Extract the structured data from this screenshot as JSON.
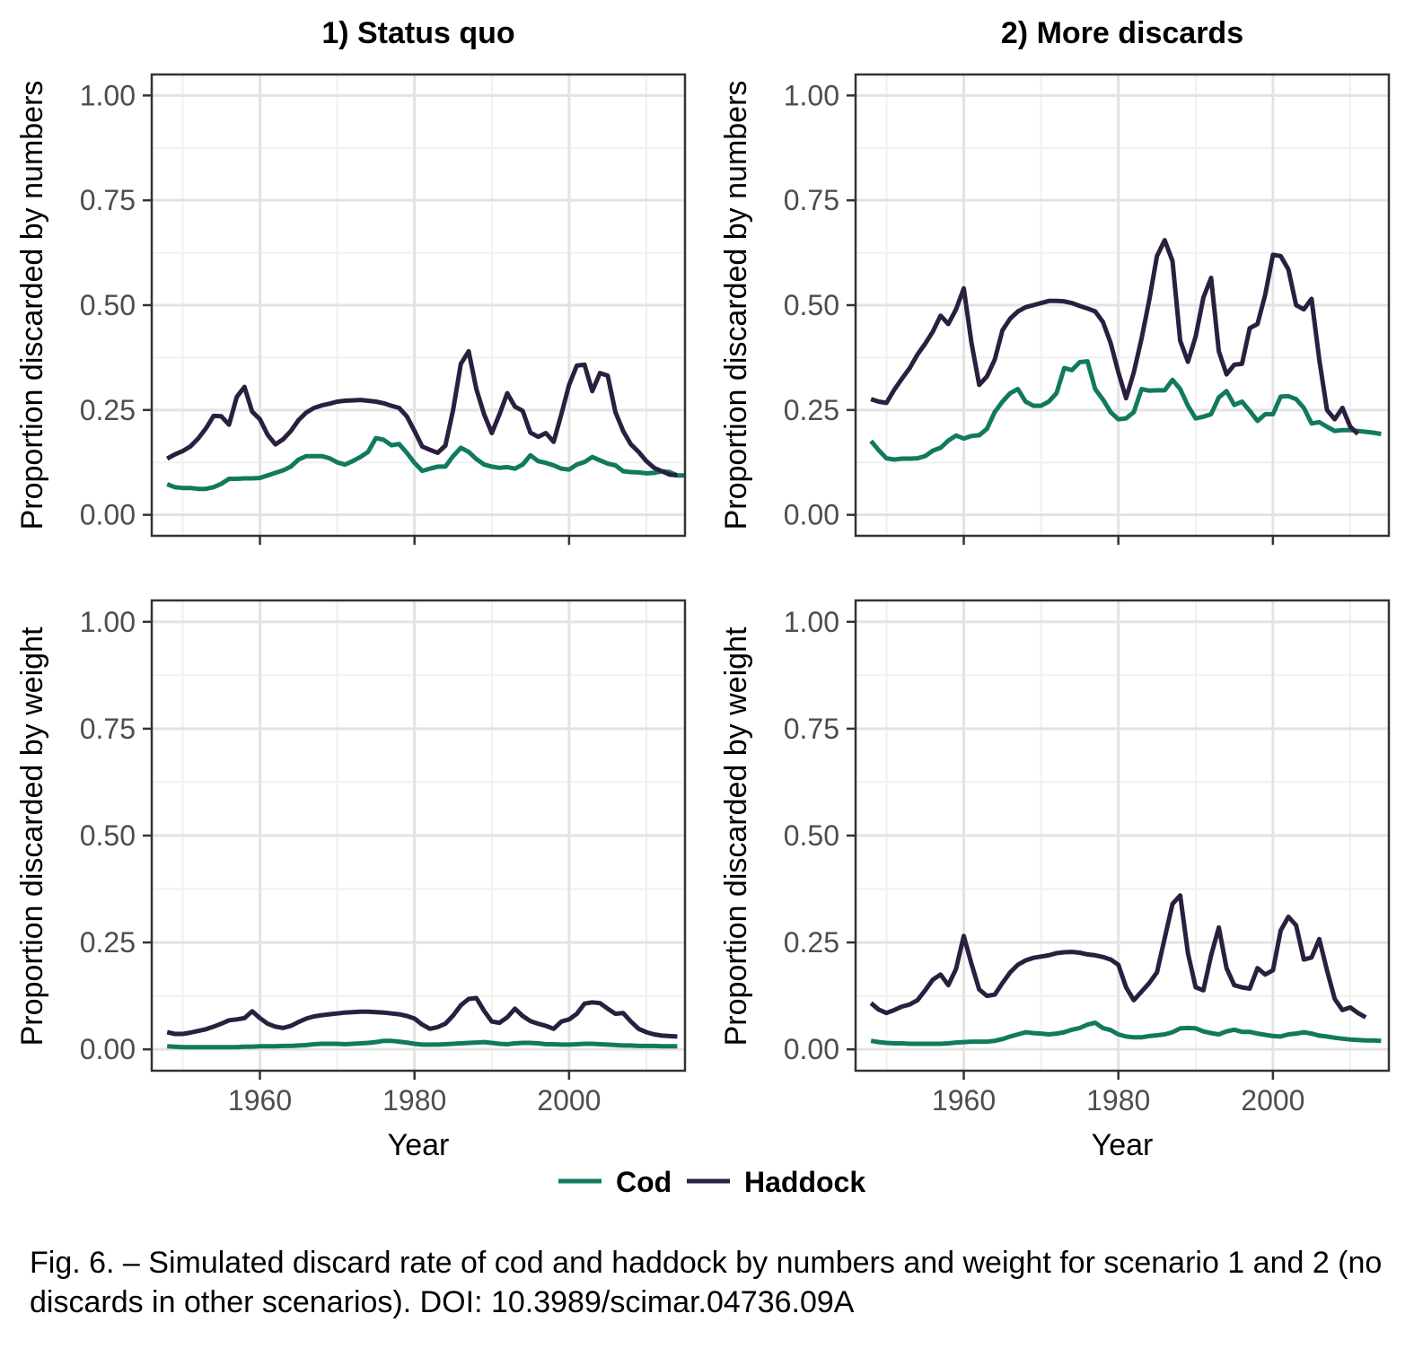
{
  "figure": {
    "caption": "Fig. 6. – Simulated discard rate of cod and haddock by numbers and weight for scenario 1 and 2 (no discards in other scenarios). DOI: 10.3989/scimar.04736.09A",
    "colors": {
      "Cod": "#117a5e",
      "Haddock": "#2b1f3f"
    },
    "legend": {
      "position": "bottom",
      "items": [
        "Cod",
        "Haddock"
      ]
    }
  },
  "chart_data": [
    {
      "type": "line",
      "panel": "top-left",
      "title": "1) Status quo",
      "xlabel": "",
      "ylabel": "Proportion discarded by numbers",
      "xlim": [
        1946,
        2015
      ],
      "ylim": [
        -0.05,
        1.05
      ],
      "xticks": [
        1960,
        1980,
        2000
      ],
      "yticks": [
        "0.00",
        "0.25",
        "0.50",
        "0.75",
        "1.00"
      ],
      "x_start": 1948,
      "series": [
        {
          "name": "Cod",
          "values": [
            0.073,
            0.066,
            0.064,
            0.064,
            0.062,
            0.062,
            0.066,
            0.074,
            0.086,
            0.086,
            0.087,
            0.087,
            0.088,
            0.094,
            0.1,
            0.106,
            0.115,
            0.132,
            0.14,
            0.14,
            0.14,
            0.135,
            0.125,
            0.12,
            0.128,
            0.138,
            0.15,
            0.183,
            0.179,
            0.166,
            0.169,
            0.148,
            0.124,
            0.105,
            0.11,
            0.115,
            0.115,
            0.14,
            0.16,
            0.15,
            0.133,
            0.12,
            0.115,
            0.112,
            0.114,
            0.11,
            0.12,
            0.142,
            0.128,
            0.124,
            0.118,
            0.11,
            0.108,
            0.12,
            0.126,
            0.138,
            0.13,
            0.122,
            0.118,
            0.104,
            0.102,
            0.101,
            0.099,
            0.1,
            0.104,
            0.102,
            0.094,
            0.094
          ]
        },
        {
          "name": "Haddock",
          "values": [
            0.134,
            0.144,
            0.152,
            0.163,
            0.182,
            0.206,
            0.236,
            0.235,
            0.215,
            0.281,
            0.305,
            0.246,
            0.228,
            0.191,
            0.168,
            0.18,
            0.2,
            0.226,
            0.244,
            0.255,
            0.261,
            0.265,
            0.27,
            0.272,
            0.273,
            0.274,
            0.272,
            0.27,
            0.266,
            0.26,
            0.255,
            0.235,
            0.2,
            0.163,
            0.155,
            0.148,
            0.165,
            0.25,
            0.36,
            0.39,
            0.3,
            0.24,
            0.195,
            0.24,
            0.29,
            0.258,
            0.248,
            0.196,
            0.186,
            0.195,
            0.174,
            0.24,
            0.31,
            0.356,
            0.358,
            0.295,
            0.338,
            0.332,
            0.245,
            0.2,
            0.168,
            0.15,
            0.128,
            0.112,
            0.104,
            0.096,
            0.094
          ]
        }
      ]
    },
    {
      "type": "line",
      "panel": "top-right",
      "title": "2) More discards",
      "xlabel": "",
      "ylabel": "Proportion discarded by numbers",
      "xlim": [
        1946,
        2015
      ],
      "ylim": [
        -0.05,
        1.05
      ],
      "xticks": [
        1960,
        1980,
        2000
      ],
      "yticks": [
        "0.00",
        "0.25",
        "0.50",
        "0.75",
        "1.00"
      ],
      "x_start": 1948,
      "series": [
        {
          "name": "Cod",
          "values": [
            0.176,
            0.154,
            0.135,
            0.132,
            0.134,
            0.134,
            0.135,
            0.14,
            0.153,
            0.16,
            0.177,
            0.189,
            0.182,
            0.188,
            0.19,
            0.205,
            0.245,
            0.27,
            0.29,
            0.3,
            0.27,
            0.26,
            0.26,
            0.27,
            0.29,
            0.35,
            0.345,
            0.364,
            0.366,
            0.3,
            0.275,
            0.245,
            0.228,
            0.23,
            0.245,
            0.3,
            0.296,
            0.297,
            0.297,
            0.322,
            0.3,
            0.26,
            0.23,
            0.234,
            0.24,
            0.28,
            0.295,
            0.262,
            0.27,
            0.248,
            0.224,
            0.24,
            0.24,
            0.282,
            0.283,
            0.276,
            0.255,
            0.218,
            0.221,
            0.21,
            0.2,
            0.202,
            0.202,
            0.2,
            0.198,
            0.196,
            0.193
          ]
        },
        {
          "name": "Haddock",
          "values": [
            0.276,
            0.27,
            0.267,
            0.298,
            0.325,
            0.35,
            0.382,
            0.408,
            0.437,
            0.475,
            0.455,
            0.49,
            0.54,
            0.41,
            0.31,
            0.33,
            0.37,
            0.44,
            0.468,
            0.485,
            0.495,
            0.5,
            0.505,
            0.51,
            0.51,
            0.509,
            0.505,
            0.498,
            0.492,
            0.485,
            0.46,
            0.41,
            0.34,
            0.278,
            0.34,
            0.42,
            0.512,
            0.617,
            0.655,
            0.605,
            0.415,
            0.365,
            0.425,
            0.518,
            0.565,
            0.39,
            0.335,
            0.358,
            0.36,
            0.445,
            0.455,
            0.525,
            0.62,
            0.617,
            0.585,
            0.5,
            0.49,
            0.515,
            0.37,
            0.25,
            0.228,
            0.255,
            0.21,
            0.193
          ]
        }
      ]
    },
    {
      "type": "line",
      "panel": "bottom-left",
      "title": "",
      "xlabel": "Year",
      "ylabel": "Proportion discarded by weight",
      "xlim": [
        1946,
        2015
      ],
      "ylim": [
        -0.05,
        1.05
      ],
      "xticks": [
        1960,
        1980,
        2000
      ],
      "yticks": [
        "0.00",
        "0.25",
        "0.50",
        "0.75",
        "1.00"
      ],
      "x_start": 1948,
      "series": [
        {
          "name": "Cod",
          "values": [
            0.007,
            0.006,
            0.005,
            0.005,
            0.005,
            0.005,
            0.005,
            0.005,
            0.005,
            0.005,
            0.006,
            0.006,
            0.007,
            0.007,
            0.007,
            0.008,
            0.008,
            0.009,
            0.01,
            0.012,
            0.013,
            0.013,
            0.013,
            0.012,
            0.013,
            0.014,
            0.015,
            0.017,
            0.02,
            0.02,
            0.018,
            0.016,
            0.013,
            0.011,
            0.011,
            0.011,
            0.012,
            0.013,
            0.014,
            0.015,
            0.016,
            0.017,
            0.015,
            0.013,
            0.012,
            0.014,
            0.015,
            0.015,
            0.014,
            0.012,
            0.012,
            0.011,
            0.011,
            0.012,
            0.013,
            0.013,
            0.012,
            0.011,
            0.01,
            0.009,
            0.009,
            0.008,
            0.008,
            0.008,
            0.007,
            0.007,
            0.007
          ]
        },
        {
          "name": "Haddock",
          "values": [
            0.04,
            0.036,
            0.036,
            0.039,
            0.043,
            0.047,
            0.053,
            0.06,
            0.068,
            0.07,
            0.073,
            0.089,
            0.073,
            0.06,
            0.053,
            0.05,
            0.055,
            0.064,
            0.072,
            0.077,
            0.08,
            0.082,
            0.084,
            0.086,
            0.087,
            0.088,
            0.088,
            0.087,
            0.086,
            0.084,
            0.082,
            0.078,
            0.072,
            0.058,
            0.048,
            0.052,
            0.06,
            0.079,
            0.103,
            0.118,
            0.12,
            0.09,
            0.065,
            0.062,
            0.075,
            0.095,
            0.078,
            0.066,
            0.06,
            0.055,
            0.048,
            0.065,
            0.07,
            0.083,
            0.107,
            0.11,
            0.108,
            0.095,
            0.083,
            0.085,
            0.065,
            0.048,
            0.04,
            0.035,
            0.032,
            0.031,
            0.03
          ]
        }
      ]
    },
    {
      "type": "line",
      "panel": "bottom-right",
      "title": "",
      "xlabel": "Year",
      "ylabel": "Proportion discarded by weight",
      "xlim": [
        1946,
        2015
      ],
      "ylim": [
        -0.05,
        1.05
      ],
      "xticks": [
        1960,
        1980,
        2000
      ],
      "yticks": [
        "0.00",
        "0.25",
        "0.50",
        "0.75",
        "1.00"
      ],
      "x_start": 1948,
      "series": [
        {
          "name": "Cod",
          "values": [
            0.02,
            0.017,
            0.015,
            0.014,
            0.014,
            0.013,
            0.013,
            0.013,
            0.013,
            0.013,
            0.014,
            0.016,
            0.017,
            0.018,
            0.018,
            0.018,
            0.02,
            0.024,
            0.03,
            0.035,
            0.04,
            0.038,
            0.037,
            0.035,
            0.037,
            0.04,
            0.046,
            0.05,
            0.058,
            0.062,
            0.05,
            0.045,
            0.035,
            0.03,
            0.028,
            0.028,
            0.031,
            0.033,
            0.035,
            0.04,
            0.049,
            0.05,
            0.049,
            0.042,
            0.038,
            0.035,
            0.042,
            0.046,
            0.041,
            0.041,
            0.037,
            0.034,
            0.031,
            0.03,
            0.035,
            0.037,
            0.04,
            0.037,
            0.032,
            0.03,
            0.027,
            0.025,
            0.023,
            0.022,
            0.021,
            0.021,
            0.02
          ]
        },
        {
          "name": "Haddock",
          "values": [
            0.108,
            0.093,
            0.085,
            0.092,
            0.1,
            0.105,
            0.115,
            0.138,
            0.163,
            0.175,
            0.15,
            0.188,
            0.265,
            0.2,
            0.14,
            0.125,
            0.128,
            0.155,
            0.18,
            0.198,
            0.208,
            0.214,
            0.217,
            0.22,
            0.225,
            0.227,
            0.228,
            0.226,
            0.222,
            0.22,
            0.216,
            0.21,
            0.198,
            0.145,
            0.115,
            0.135,
            0.155,
            0.18,
            0.26,
            0.34,
            0.36,
            0.225,
            0.145,
            0.138,
            0.22,
            0.285,
            0.19,
            0.15,
            0.145,
            0.142,
            0.19,
            0.175,
            0.185,
            0.278,
            0.31,
            0.29,
            0.21,
            0.215,
            0.258,
            0.185,
            0.118,
            0.092,
            0.098,
            0.085,
            0.075
          ]
        }
      ]
    }
  ]
}
